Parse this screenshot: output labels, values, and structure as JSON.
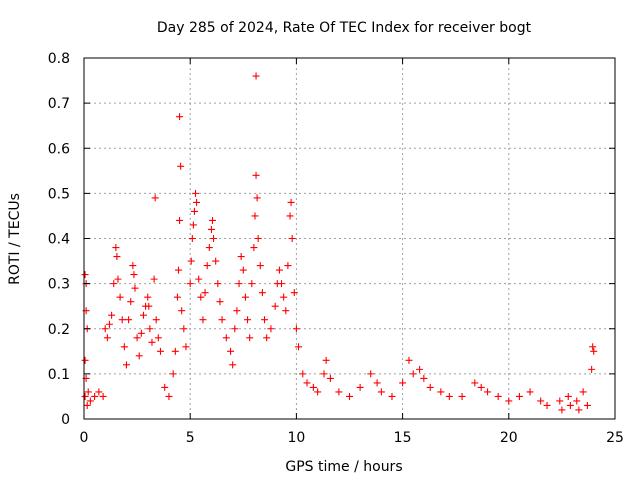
{
  "chart_data": {
    "type": "scatter",
    "title": "Day 285 of 2024, Rate Of TEC Index for receiver bogt",
    "xlabel": "GPS time / hours",
    "ylabel": "ROTI / TECUs",
    "xlim": [
      0,
      25
    ],
    "ylim": [
      0,
      0.8
    ],
    "xticks": [
      "0",
      "5",
      "10",
      "15",
      "20",
      "25"
    ],
    "yticks": [
      "0",
      "0.1",
      "0.2",
      "0.3",
      "0.4",
      "0.5",
      "0.6",
      "0.7",
      "0.8"
    ],
    "grid": true,
    "marker": "plus",
    "color": "#ff0000",
    "series": [
      {
        "name": "ROTI",
        "points": [
          [
            0.05,
            0.32
          ],
          [
            0.1,
            0.3
          ],
          [
            0.1,
            0.24
          ],
          [
            0.15,
            0.2
          ],
          [
            0.05,
            0.13
          ],
          [
            0.1,
            0.09
          ],
          [
            0.2,
            0.06
          ],
          [
            0.05,
            0.05
          ],
          [
            0.3,
            0.04
          ],
          [
            0.15,
            0.03
          ],
          [
            0.5,
            0.05
          ],
          [
            0.7,
            0.06
          ],
          [
            0.9,
            0.05
          ],
          [
            1.0,
            0.2
          ],
          [
            1.1,
            0.18
          ],
          [
            1.2,
            0.21
          ],
          [
            1.3,
            0.23
          ],
          [
            1.4,
            0.3
          ],
          [
            1.5,
            0.38
          ],
          [
            1.55,
            0.36
          ],
          [
            1.6,
            0.31
          ],
          [
            1.7,
            0.27
          ],
          [
            1.8,
            0.22
          ],
          [
            1.9,
            0.16
          ],
          [
            2.0,
            0.12
          ],
          [
            2.1,
            0.22
          ],
          [
            2.2,
            0.26
          ],
          [
            2.3,
            0.34
          ],
          [
            2.35,
            0.32
          ],
          [
            2.4,
            0.29
          ],
          [
            2.5,
            0.18
          ],
          [
            2.6,
            0.14
          ],
          [
            2.7,
            0.19
          ],
          [
            2.8,
            0.23
          ],
          [
            2.9,
            0.25
          ],
          [
            3.0,
            0.27
          ],
          [
            3.05,
            0.25
          ],
          [
            3.1,
            0.2
          ],
          [
            3.2,
            0.17
          ],
          [
            3.3,
            0.31
          ],
          [
            3.35,
            0.49
          ],
          [
            3.4,
            0.22
          ],
          [
            3.5,
            0.18
          ],
          [
            3.6,
            0.15
          ],
          [
            3.8,
            0.07
          ],
          [
            4.0,
            0.05
          ],
          [
            4.2,
            0.1
          ],
          [
            4.3,
            0.15
          ],
          [
            4.4,
            0.27
          ],
          [
            4.45,
            0.33
          ],
          [
            4.5,
            0.44
          ],
          [
            4.55,
            0.56
          ],
          [
            4.5,
            0.67
          ],
          [
            4.6,
            0.24
          ],
          [
            4.7,
            0.2
          ],
          [
            4.8,
            0.16
          ],
          [
            5.0,
            0.3
          ],
          [
            5.05,
            0.35
          ],
          [
            5.1,
            0.4
          ],
          [
            5.15,
            0.43
          ],
          [
            5.2,
            0.46
          ],
          [
            5.25,
            0.5
          ],
          [
            5.3,
            0.48
          ],
          [
            5.4,
            0.31
          ],
          [
            5.5,
            0.27
          ],
          [
            5.6,
            0.22
          ],
          [
            5.7,
            0.28
          ],
          [
            5.8,
            0.34
          ],
          [
            5.9,
            0.38
          ],
          [
            6.0,
            0.42
          ],
          [
            6.05,
            0.44
          ],
          [
            6.1,
            0.4
          ],
          [
            6.2,
            0.35
          ],
          [
            6.3,
            0.3
          ],
          [
            6.4,
            0.26
          ],
          [
            6.5,
            0.22
          ],
          [
            6.7,
            0.18
          ],
          [
            6.9,
            0.15
          ],
          [
            7.0,
            0.12
          ],
          [
            7.1,
            0.2
          ],
          [
            7.2,
            0.24
          ],
          [
            7.3,
            0.3
          ],
          [
            7.4,
            0.36
          ],
          [
            7.5,
            0.33
          ],
          [
            7.6,
            0.27
          ],
          [
            7.7,
            0.22
          ],
          [
            7.8,
            0.18
          ],
          [
            7.9,
            0.3
          ],
          [
            8.0,
            0.38
          ],
          [
            8.05,
            0.45
          ],
          [
            8.1,
            0.54
          ],
          [
            8.1,
            0.76
          ],
          [
            8.15,
            0.49
          ],
          [
            8.2,
            0.4
          ],
          [
            8.3,
            0.34
          ],
          [
            8.4,
            0.28
          ],
          [
            8.5,
            0.22
          ],
          [
            8.6,
            0.18
          ],
          [
            8.8,
            0.2
          ],
          [
            9.0,
            0.25
          ],
          [
            9.1,
            0.3
          ],
          [
            9.2,
            0.33
          ],
          [
            9.3,
            0.3
          ],
          [
            9.4,
            0.27
          ],
          [
            9.5,
            0.24
          ],
          [
            9.6,
            0.34
          ],
          [
            9.7,
            0.45
          ],
          [
            9.75,
            0.48
          ],
          [
            9.8,
            0.4
          ],
          [
            9.9,
            0.28
          ],
          [
            10.0,
            0.2
          ],
          [
            10.1,
            0.16
          ],
          [
            10.3,
            0.1
          ],
          [
            10.5,
            0.08
          ],
          [
            10.8,
            0.07
          ],
          [
            11.0,
            0.06
          ],
          [
            11.3,
            0.1
          ],
          [
            11.4,
            0.13
          ],
          [
            11.6,
            0.09
          ],
          [
            12.0,
            0.06
          ],
          [
            12.5,
            0.05
          ],
          [
            13.0,
            0.07
          ],
          [
            13.5,
            0.1
          ],
          [
            13.8,
            0.08
          ],
          [
            14.0,
            0.06
          ],
          [
            14.5,
            0.05
          ],
          [
            15.0,
            0.08
          ],
          [
            15.3,
            0.13
          ],
          [
            15.5,
            0.1
          ],
          [
            15.8,
            0.11
          ],
          [
            16.0,
            0.09
          ],
          [
            16.3,
            0.07
          ],
          [
            16.8,
            0.06
          ],
          [
            17.2,
            0.05
          ],
          [
            17.8,
            0.05
          ],
          [
            18.4,
            0.08
          ],
          [
            18.7,
            0.07
          ],
          [
            19.0,
            0.06
          ],
          [
            19.5,
            0.05
          ],
          [
            20.0,
            0.04
          ],
          [
            20.5,
            0.05
          ],
          [
            21.0,
            0.06
          ],
          [
            21.5,
            0.04
          ],
          [
            21.8,
            0.03
          ],
          [
            22.4,
            0.04
          ],
          [
            22.8,
            0.05
          ],
          [
            23.2,
            0.04
          ],
          [
            23.5,
            0.06
          ],
          [
            23.9,
            0.11
          ],
          [
            23.95,
            0.16
          ],
          [
            24.0,
            0.15
          ],
          [
            23.7,
            0.03
          ],
          [
            23.3,
            0.02
          ],
          [
            22.9,
            0.03
          ],
          [
            22.5,
            0.02
          ]
        ]
      }
    ]
  }
}
